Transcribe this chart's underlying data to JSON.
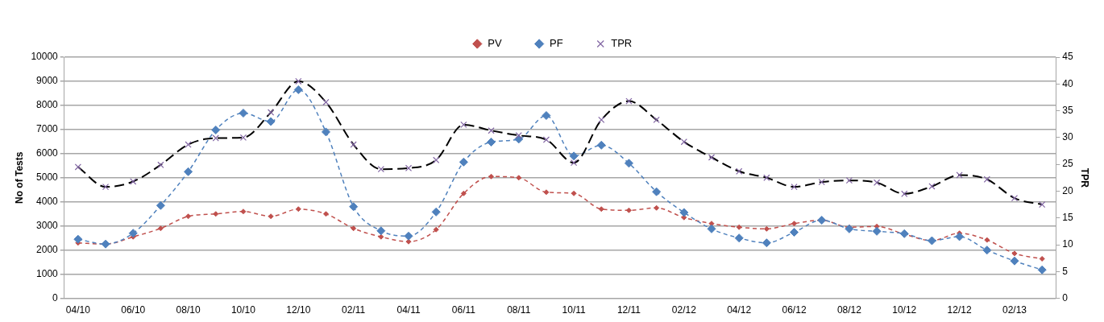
{
  "chart_data": {
    "type": "line",
    "categories": [
      "04/10",
      null,
      "06/10",
      null,
      "08/10",
      null,
      "10/10",
      null,
      "12/10",
      null,
      "02/11",
      null,
      "04/11",
      null,
      "06/11",
      null,
      "08/11",
      null,
      "10/11",
      null,
      "12/11",
      null,
      "02/12",
      null,
      "04/12",
      null,
      "06/12",
      null,
      "08/12",
      null,
      "10/12",
      null,
      "12/12",
      null,
      "02/13",
      null
    ],
    "series": [
      {
        "name": "PV",
        "color": "#c0504d",
        "marker": "diamond",
        "line_style": "dashed",
        "values": [
          2300,
          2250,
          2550,
          2900,
          3400,
          3500,
          3600,
          3400,
          3700,
          3500,
          2900,
          2550,
          2350,
          2850,
          4350,
          5050,
          5000,
          4400,
          4350,
          3700,
          3650,
          3750,
          3350,
          3100,
          2950,
          2880,
          3100,
          3240,
          2950,
          2980,
          2660,
          2390,
          2700,
          2420,
          1860,
          1640
        ]
      },
      {
        "name": "PF",
        "color": "#4f81bd",
        "marker": "diamond",
        "line_style": "dashed",
        "values": [
          2450,
          2250,
          2700,
          3850,
          5250,
          6980,
          7680,
          7330,
          8650,
          6900,
          3800,
          2800,
          2580,
          3580,
          5650,
          6480,
          6600,
          7580,
          5900,
          6350,
          5600,
          4420,
          3560,
          2880,
          2500,
          2300,
          2740,
          3240,
          2880,
          2780,
          2680,
          2390,
          2560,
          2000,
          1550,
          1180
        ]
      },
      {
        "name": "TPR",
        "color": "#000000",
        "marker": "cross",
        "line_style": "dashed",
        "axis": "y2",
        "values": [
          24.5,
          20.8,
          21.8,
          24.9,
          28.7,
          29.9,
          30.0,
          34.7,
          40.5,
          36.6,
          28.7,
          24.1,
          24.3,
          25.8,
          32.4,
          31.3,
          30.4,
          29.6,
          25.3,
          33.3,
          36.8,
          33.3,
          29.2,
          26.3,
          23.7,
          22.5,
          20.8,
          21.7,
          22.0,
          21.6,
          19.5,
          20.9,
          23.0,
          22.2,
          18.7,
          17.5
        ]
      }
    ],
    "ylabel": "No of Tests",
    "y2label": "TPR",
    "ylim": [
      0,
      10000
    ],
    "yticks": [
      0,
      1000,
      2000,
      3000,
      4000,
      5000,
      6000,
      7000,
      8000,
      9000,
      10000
    ],
    "y2lim": [
      0,
      45
    ],
    "y2ticks": [
      0,
      5,
      10,
      15,
      20,
      25,
      30,
      35,
      40,
      45
    ],
    "grid": "y",
    "legend": "top"
  }
}
